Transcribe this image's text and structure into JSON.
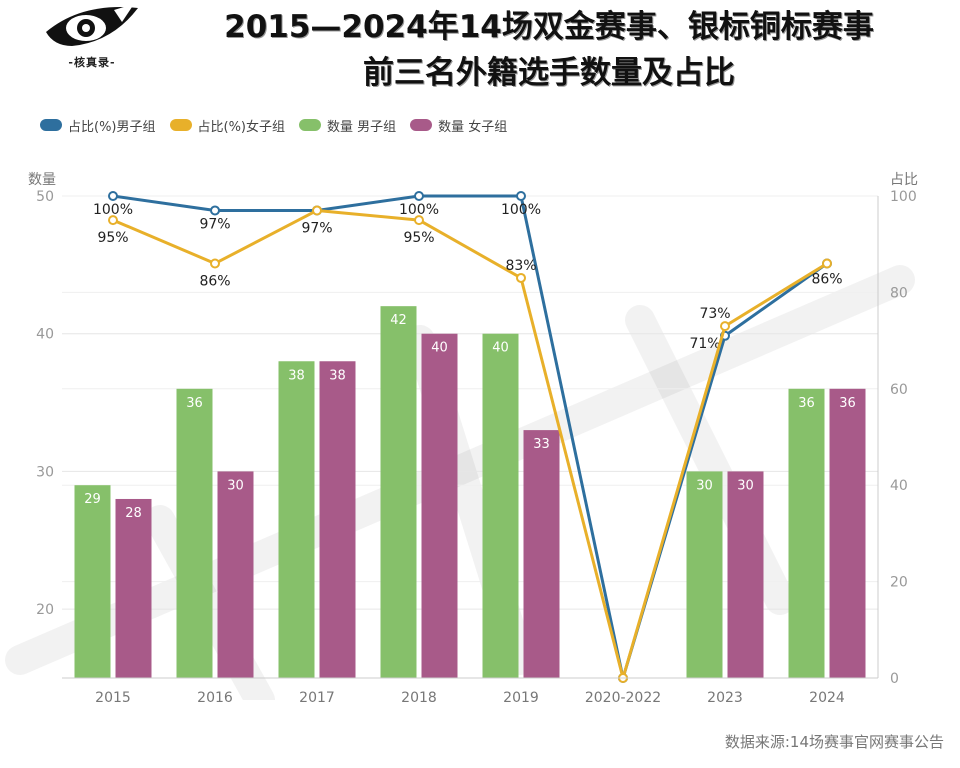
{
  "logo": {
    "text": "-核真录-"
  },
  "title": {
    "line1": "2015—2024年14场双金赛事、银标铜标赛事",
    "line2": "前三名外籍选手数量及占比"
  },
  "legend": [
    {
      "label": "占比(%)男子组",
      "color": "#2e6f9e"
    },
    {
      "label": "占比(%)女子组",
      "color": "#e8b02a"
    },
    {
      "label": "数量 男子组",
      "color": "#86c06a"
    },
    {
      "label": "数量 女子组",
      "color": "#a85a89"
    }
  ],
  "source": "数据来源:14场赛事官网赛事公告",
  "chart_data": {
    "type": "bar",
    "categories": [
      "2015",
      "2016",
      "2017",
      "2018",
      "2019",
      "2020-2022",
      "2023",
      "2024"
    ],
    "left_axis": {
      "title": "数量",
      "ylim": [
        15,
        50
      ],
      "ticks": [
        20,
        30,
        40,
        50
      ]
    },
    "right_axis": {
      "title": "占比",
      "ylim": [
        0,
        100
      ],
      "ticks": [
        0,
        20,
        40,
        60,
        80,
        100
      ]
    },
    "bar_series": [
      {
        "name": "数量 男子组",
        "color": "#86c06a",
        "values": [
          29,
          36,
          38,
          42,
          40,
          null,
          30,
          36
        ]
      },
      {
        "name": "数量 女子组",
        "color": "#a85a89",
        "values": [
          28,
          30,
          38,
          40,
          33,
          null,
          30,
          36
        ]
      }
    ],
    "line_series": [
      {
        "name": "占比(%)男子组",
        "color": "#2e6f9e",
        "values": [
          100,
          97,
          97,
          100,
          100,
          0,
          71,
          86
        ],
        "labels": [
          "100%",
          "97%",
          "",
          "100%",
          "100%",
          "",
          "71%",
          ""
        ]
      },
      {
        "name": "占比(%)女子组",
        "color": "#e8b02a",
        "values": [
          95,
          86,
          97,
          95,
          83,
          0,
          73,
          86
        ],
        "labels": [
          "95%",
          "86%",
          "97%",
          "95%",
          "83%",
          "",
          "73%",
          "86%"
        ]
      }
    ],
    "grid": true,
    "legend_position": "top-left"
  }
}
